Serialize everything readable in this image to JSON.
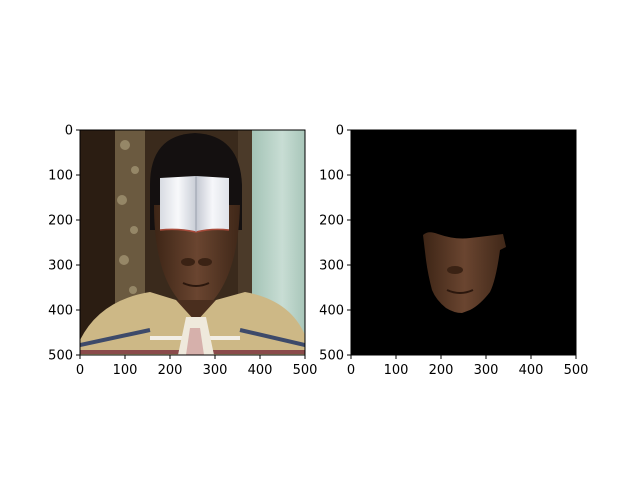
{
  "chart_data": [
    {
      "type": "image",
      "image_content": "photo of a man's head and shoulders with a white open book covering his forehead and eyes; light green curtain background; striped shirt with beige collar",
      "xlim": [
        0,
        500
      ],
      "ylim": [
        500,
        0
      ],
      "xticks": [
        "0",
        "100",
        "200",
        "300",
        "400",
        "500"
      ],
      "yticks": [
        "0",
        "100",
        "200",
        "300",
        "400",
        "500"
      ],
      "grid": false,
      "colors": {
        "background": "#3a2a1c",
        "curtain": "#b8d2c6",
        "skin": "#5a3a26",
        "hair": "#141010",
        "book": "#eef0f4",
        "collar": "#cdb886"
      }
    },
    {
      "type": "image",
      "image_content": "segmentation mask: only the lower face region (nose, mouth, chin) kept; everything else black",
      "xlim": [
        0,
        500
      ],
      "ylim": [
        500,
        0
      ],
      "xticks": [
        "0",
        "100",
        "200",
        "300",
        "400",
        "500"
      ],
      "yticks": [
        "0",
        "100",
        "200",
        "300",
        "400",
        "500"
      ],
      "grid": false,
      "colors": {
        "background": "#000000",
        "skin": "#5e3c28"
      }
    }
  ]
}
